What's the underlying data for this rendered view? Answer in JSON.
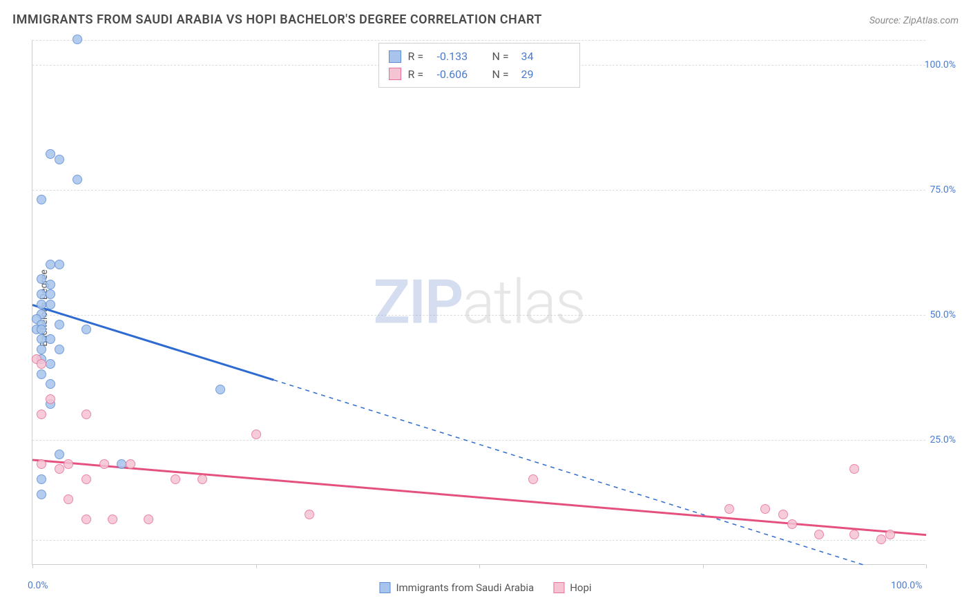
{
  "title": "IMMIGRANTS FROM SAUDI ARABIA VS HOPI BACHELOR'S DEGREE CORRELATION CHART",
  "source": "Source: ZipAtlas.com",
  "watermark": {
    "left": "ZIP",
    "right": "atlas"
  },
  "y_axis_label": "Bachelor's Degree",
  "chart": {
    "type": "scatter",
    "xlim": [
      0,
      100
    ],
    "ylim": [
      0,
      105
    ],
    "x_ticks": [
      0,
      25,
      50,
      75,
      100
    ],
    "x_tick_labels": [
      "0.0%",
      "",
      "",
      "",
      "100.0%"
    ],
    "y_ticks": [
      25,
      50,
      75,
      100
    ],
    "y_tick_labels": [
      "25.0%",
      "50.0%",
      "75.0%",
      "100.0%"
    ],
    "grid_y": [
      5,
      25,
      50,
      75,
      100,
      105
    ],
    "background_color": "#ffffff",
    "grid_color": "#dddddd",
    "axis_color": "#cccccc",
    "tick_label_color": "#4a7bd0",
    "point_radius": 7,
    "series": [
      {
        "name": "Immigrants from Saudi Arabia",
        "fill_color": "#a8c4ec",
        "stroke_color": "#5b8dd6",
        "line_color": "#2e6bd0",
        "fill_opacity": 0.45,
        "R": "-0.133",
        "N": "34",
        "trend_solid": {
          "x1": 0,
          "y1": 52,
          "x2": 27,
          "y2": 37
        },
        "trend_dashed": {
          "x1": 27,
          "y1": 37,
          "x2": 93,
          "y2": 0
        },
        "points": [
          [
            5,
            105
          ],
          [
            2,
            82
          ],
          [
            3,
            81
          ],
          [
            5,
            77
          ],
          [
            1,
            73
          ],
          [
            2,
            60
          ],
          [
            3,
            60
          ],
          [
            1,
            57
          ],
          [
            2,
            56
          ],
          [
            1,
            54
          ],
          [
            2,
            54
          ],
          [
            1,
            52
          ],
          [
            2,
            52
          ],
          [
            1,
            50
          ],
          [
            0.5,
            49
          ],
          [
            1,
            48
          ],
          [
            3,
            48
          ],
          [
            0.5,
            47
          ],
          [
            1,
            47
          ],
          [
            6,
            47
          ],
          [
            1,
            45
          ],
          [
            2,
            45
          ],
          [
            1,
            43
          ],
          [
            3,
            43
          ],
          [
            1,
            41
          ],
          [
            2,
            40
          ],
          [
            1,
            38
          ],
          [
            2,
            36
          ],
          [
            2,
            32
          ],
          [
            21,
            35
          ],
          [
            3,
            22
          ],
          [
            10,
            20
          ],
          [
            1,
            17
          ],
          [
            1,
            14
          ]
        ]
      },
      {
        "name": "Hopi",
        "fill_color": "#f5c4d3",
        "stroke_color": "#e86f9a",
        "line_color": "#e5517f",
        "fill_opacity": 0.45,
        "R": "-0.606",
        "N": "29",
        "trend_solid": {
          "x1": 0,
          "y1": 21,
          "x2": 100,
          "y2": 6
        },
        "trend_dashed": null,
        "points": [
          [
            0.5,
            41
          ],
          [
            1,
            40
          ],
          [
            2,
            33
          ],
          [
            1,
            30
          ],
          [
            6,
            30
          ],
          [
            25,
            26
          ],
          [
            1,
            20
          ],
          [
            4,
            20
          ],
          [
            8,
            20
          ],
          [
            11,
            20
          ],
          [
            3,
            19
          ],
          [
            6,
            17
          ],
          [
            16,
            17
          ],
          [
            19,
            17
          ],
          [
            56,
            17
          ],
          [
            92,
            19
          ],
          [
            4,
            13
          ],
          [
            6,
            9
          ],
          [
            9,
            9
          ],
          [
            13,
            9
          ],
          [
            31,
            10
          ],
          [
            78,
            11
          ],
          [
            82,
            11
          ],
          [
            84,
            10
          ],
          [
            85,
            8
          ],
          [
            88,
            6
          ],
          [
            92,
            6
          ],
          [
            96,
            6
          ],
          [
            95,
            5
          ]
        ]
      }
    ]
  },
  "stat_labels": {
    "R": "R =",
    "N": "N ="
  },
  "legend_bottom_labels": [
    "Immigrants from Saudi Arabia",
    "Hopi"
  ]
}
